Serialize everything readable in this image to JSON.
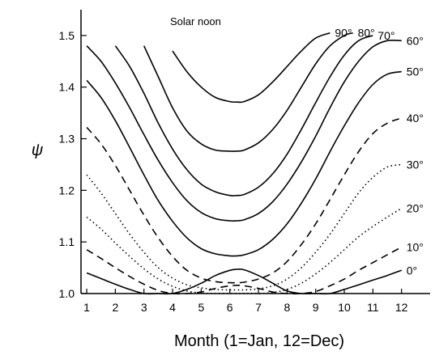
{
  "chart_data": {
    "type": "line",
    "title": "",
    "annotation": "Solar noon",
    "xlabel": "Month (1=Jan, 12=Dec)",
    "ylabel": "ψ",
    "xlim": [
      0.8,
      13.0
    ],
    "ylim": [
      1.0,
      1.55
    ],
    "xticks": [
      1,
      2,
      3,
      4,
      5,
      6,
      7,
      8,
      9,
      10,
      11,
      12
    ],
    "yticks": [
      1.0,
      1.1,
      1.2,
      1.3,
      1.4,
      1.5
    ],
    "ytick_labels": [
      "1.0",
      "1.1",
      "1.2",
      "1.3",
      "1.4",
      "1.5"
    ],
    "grid": false,
    "legend": "none",
    "series": [
      {
        "name": "0°",
        "style": "solid",
        "x": [
          1,
          1.5,
          2,
          2.5,
          3,
          3.5,
          4,
          4.5,
          5,
          5.5,
          6,
          6.25,
          6.5,
          7,
          7.5,
          8,
          8.5,
          9,
          9.5,
          10,
          10.5,
          11,
          11.5,
          12
        ],
        "y": [
          1.04,
          1.029,
          1.018,
          1.008,
          1.0,
          1.0,
          1.0,
          1.008,
          1.02,
          1.035,
          1.045,
          1.047,
          1.046,
          1.035,
          1.02,
          1.005,
          1.0,
          1.0,
          1.0,
          1.008,
          1.017,
          1.026,
          1.035,
          1.045
        ]
      },
      {
        "name": "10°",
        "style": "dashed",
        "x": [
          1,
          1.5,
          2,
          2.5,
          3,
          3.5,
          4,
          4.5,
          5,
          5.5,
          6,
          6.25,
          6.5,
          7,
          7.5,
          8,
          8.5,
          9,
          9.5,
          10,
          10.5,
          11,
          11.5,
          12
        ],
        "y": [
          1.085,
          1.068,
          1.05,
          1.033,
          1.018,
          1.006,
          1.0,
          1.0,
          1.003,
          1.01,
          1.015,
          1.016,
          1.015,
          1.01,
          1.003,
          1.0,
          1.0,
          1.004,
          1.015,
          1.028,
          1.045,
          1.06,
          1.075,
          1.09
        ]
      },
      {
        "name": "20°",
        "style": "dotted",
        "x": [
          1,
          1.5,
          2,
          2.5,
          3,
          3.5,
          4,
          4.5,
          5,
          5.5,
          6,
          6.25,
          6.5,
          7,
          7.5,
          8,
          8.5,
          9,
          9.5,
          10,
          10.5,
          11,
          11.5,
          12
        ],
        "y": [
          1.148,
          1.125,
          1.098,
          1.072,
          1.048,
          1.028,
          1.014,
          1.005,
          1.001,
          1.0,
          1.0,
          1.0,
          1.0,
          1.0,
          1.002,
          1.008,
          1.02,
          1.038,
          1.06,
          1.085,
          1.11,
          1.13,
          1.148,
          1.165
        ]
      },
      {
        "name": "30°",
        "style": "dotted",
        "x": [
          1,
          1.5,
          2,
          2.5,
          3,
          3.5,
          4,
          4.5,
          5,
          5.5,
          6,
          6.25,
          6.5,
          7,
          7.5,
          8,
          8.5,
          9,
          9.5,
          10,
          10.5,
          11,
          11.5,
          12
        ],
        "y": [
          1.23,
          1.195,
          1.155,
          1.115,
          1.08,
          1.05,
          1.03,
          1.017,
          1.011,
          1.008,
          1.007,
          1.007,
          1.007,
          1.009,
          1.015,
          1.028,
          1.05,
          1.08,
          1.115,
          1.155,
          1.195,
          1.225,
          1.245,
          1.25
        ]
      },
      {
        "name": "40°",
        "style": "dashed",
        "x": [
          1,
          1.5,
          2,
          2.5,
          3,
          3.5,
          4,
          4.5,
          5,
          5.5,
          6,
          6.25,
          6.5,
          7,
          7.5,
          8,
          8.5,
          9,
          9.5,
          10,
          10.5,
          11,
          11.5,
          12
        ],
        "y": [
          1.322,
          1.29,
          1.248,
          1.2,
          1.152,
          1.108,
          1.072,
          1.045,
          1.03,
          1.023,
          1.021,
          1.021,
          1.022,
          1.028,
          1.04,
          1.062,
          1.095,
          1.135,
          1.182,
          1.23,
          1.275,
          1.31,
          1.33,
          1.34
        ]
      },
      {
        "name": "50°",
        "style": "solid",
        "x": [
          1,
          1.5,
          2,
          2.5,
          3,
          3.5,
          4,
          4.5,
          5,
          5.5,
          6,
          6.25,
          6.5,
          7,
          7.5,
          8,
          8.5,
          9,
          9.5,
          10,
          10.5,
          11,
          11.5,
          12
        ],
        "y": [
          1.413,
          1.38,
          1.335,
          1.283,
          1.23,
          1.18,
          1.14,
          1.108,
          1.087,
          1.077,
          1.073,
          1.073,
          1.075,
          1.085,
          1.105,
          1.135,
          1.175,
          1.222,
          1.275,
          1.325,
          1.37,
          1.405,
          1.425,
          1.43
        ]
      },
      {
        "name": "60°",
        "style": "solid",
        "x": [
          1,
          1.5,
          2,
          2.5,
          3,
          3.5,
          4,
          4.5,
          5,
          5.5,
          6,
          6.25,
          6.5,
          7,
          7.5,
          8,
          8.5,
          9,
          9.5,
          10,
          10.5,
          11,
          11.5,
          12
        ],
        "y": [
          1.48,
          1.45,
          1.408,
          1.36,
          1.308,
          1.258,
          1.215,
          1.18,
          1.157,
          1.145,
          1.141,
          1.141,
          1.143,
          1.155,
          1.178,
          1.212,
          1.255,
          1.305,
          1.36,
          1.41,
          1.45,
          1.478,
          1.49,
          1.49
        ]
      },
      {
        "name": "70°",
        "style": "solid",
        "x": [
          2,
          2.5,
          3,
          3.5,
          4,
          4.5,
          5,
          5.5,
          6,
          6.25,
          6.5,
          7,
          7.5,
          8,
          8.5,
          9,
          9.5,
          10,
          10.5,
          11
        ],
        "y": [
          1.48,
          1.44,
          1.388,
          1.33,
          1.28,
          1.24,
          1.212,
          1.197,
          1.19,
          1.19,
          1.192,
          1.206,
          1.232,
          1.27,
          1.318,
          1.37,
          1.42,
          1.462,
          1.49,
          1.5
        ]
      },
      {
        "name": "80°",
        "style": "solid",
        "x": [
          3,
          3.5,
          4,
          4.5,
          5,
          5.5,
          6,
          6.25,
          6.5,
          7,
          7.5,
          8,
          8.5,
          9,
          9.5,
          10,
          10.3
        ],
        "y": [
          1.48,
          1.42,
          1.36,
          1.315,
          1.29,
          1.278,
          1.276,
          1.276,
          1.278,
          1.292,
          1.318,
          1.355,
          1.4,
          1.445,
          1.48,
          1.5,
          1.505
        ]
      },
      {
        "name": "90°",
        "style": "solid",
        "x": [
          4,
          4.5,
          5,
          5.5,
          6,
          6.25,
          6.5,
          7,
          7.5,
          8,
          8.5,
          9,
          9.5
        ],
        "y": [
          1.47,
          1.43,
          1.4,
          1.38,
          1.372,
          1.371,
          1.372,
          1.385,
          1.41,
          1.44,
          1.47,
          1.495,
          1.505
        ]
      }
    ]
  }
}
